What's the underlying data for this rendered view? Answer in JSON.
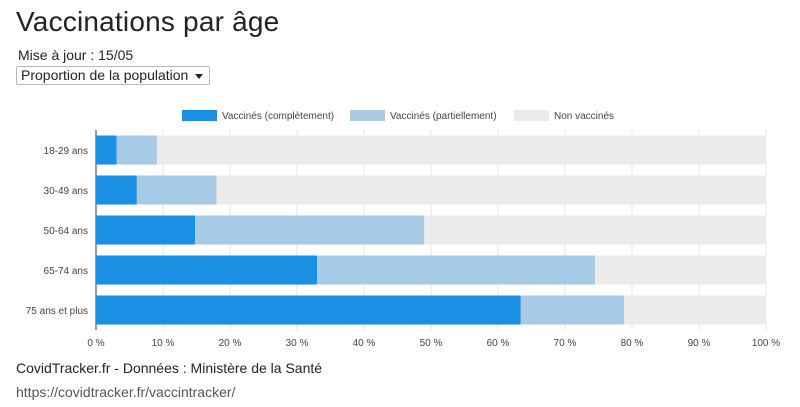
{
  "header": {
    "title": "Vaccinations par âge",
    "updated": "Mise à jour : 15/05",
    "select_value": "Proportion de la population"
  },
  "footer": {
    "source": "CovidTracker.fr - Données : Ministère de la Santé",
    "url": "https://covidtracker.fr/vaccintracker/"
  },
  "chart_data": {
    "type": "bar",
    "orientation": "horizontal",
    "stacked": true,
    "categories": [
      "18-29 ans",
      "30-49 ans",
      "50-64 ans",
      "65-74 ans",
      "75 ans et plus"
    ],
    "series": [
      {
        "name": "Vaccinés (complètement)",
        "color": "#1a8fe3",
        "values": [
          3.1,
          6.1,
          14.8,
          33.0,
          63.4
        ]
      },
      {
        "name": "Vaccinés (partiellement)",
        "color": "#a7cbe6",
        "values": [
          6.0,
          11.9,
          34.2,
          41.5,
          15.4
        ]
      },
      {
        "name": "Non vaccinés",
        "color": "#ebebeb",
        "values": [
          90.9,
          82.0,
          51.0,
          25.5,
          21.2
        ]
      }
    ],
    "xlim": [
      0,
      100
    ],
    "xticks": [
      0,
      10,
      20,
      30,
      40,
      50,
      60,
      70,
      80,
      90,
      100
    ],
    "tick_labels": [
      "0 %",
      "10 %",
      "20 %",
      "30 %",
      "40 %",
      "50 %",
      "60 %",
      "70 %",
      "80 %",
      "90 %",
      "100 %"
    ],
    "legend_position": "top",
    "grid": true
  }
}
